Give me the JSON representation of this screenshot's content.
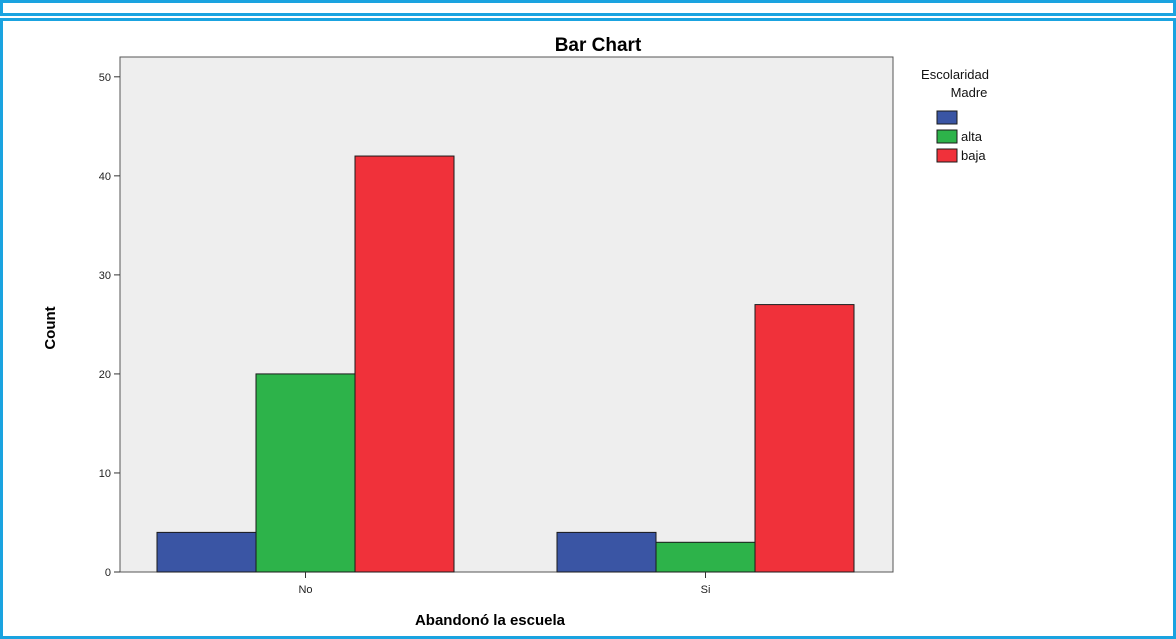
{
  "chart_data": {
    "type": "bar",
    "title": "Bar Chart",
    "xlabel": "Abandonó la escuela",
    "ylabel": "Count",
    "categories": [
      "No",
      "Si"
    ],
    "ylim": [
      0,
      52
    ],
    "yticks": [
      0,
      10,
      20,
      30,
      40,
      50
    ],
    "series": [
      {
        "name": "",
        "color": "#3a55a4",
        "values": [
          4,
          4
        ]
      },
      {
        "name": "alta",
        "color": "#2db34a",
        "values": [
          20,
          3
        ]
      },
      {
        "name": "baja",
        "color": "#f0313a",
        "values": [
          42,
          27
        ]
      }
    ],
    "legend": {
      "title_line1": "Escolaridad",
      "title_line2": "Madre",
      "position": "right"
    },
    "plot_background": "#eeeeee",
    "grid": false
  }
}
